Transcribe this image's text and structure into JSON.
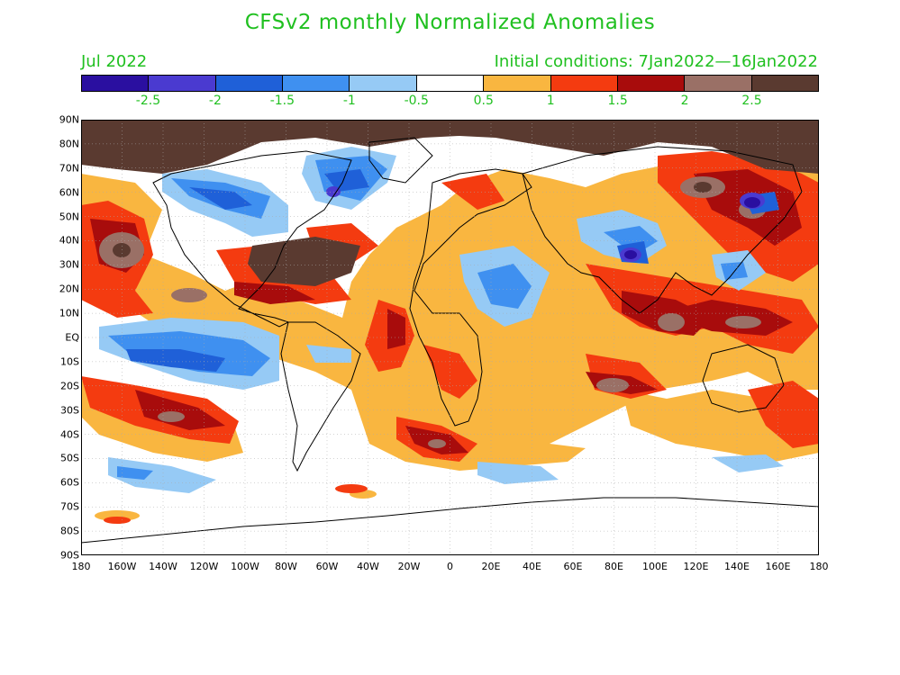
{
  "header": {
    "title": "CFSv2 monthly Normalized Anomalies",
    "month": "Jul 2022",
    "initial_conditions": "Initial conditions: 7Jan2022—16Jan2022"
  },
  "colorbar": {
    "colors": [
      "#2a0fa0",
      "#4a3ad0",
      "#1f60d8",
      "#3f90f0",
      "#96caf5",
      "#ffffff",
      "#f9b640",
      "#f43b10",
      "#a80c0c",
      "#9a7066",
      "#5a3a30"
    ],
    "labels": [
      "-2.5",
      "-2",
      "-1.5",
      "-1",
      "-0.5",
      "0.5",
      "1",
      "1.5",
      "2",
      "2.5"
    ]
  },
  "axes": {
    "lat_labels": [
      "90N",
      "80N",
      "70N",
      "60N",
      "50N",
      "40N",
      "30N",
      "20N",
      "10N",
      "EQ",
      "10S",
      "20S",
      "30S",
      "40S",
      "50S",
      "60S",
      "70S",
      "80S",
      "90S"
    ],
    "lon_labels": [
      "180",
      "160W",
      "140W",
      "120W",
      "100W",
      "80W",
      "60W",
      "40W",
      "20W",
      "0",
      "20E",
      "40E",
      "60E",
      "80E",
      "100E",
      "120E",
      "140E",
      "160E",
      "180"
    ]
  },
  "chart_data": {
    "type": "heatmap",
    "title": "CFSv2 monthly Normalized Anomalies",
    "x_range": [
      -180,
      180
    ],
    "y_range": [
      -90,
      90
    ],
    "levels": [
      -2.5,
      -2,
      -1.5,
      -1,
      -0.5,
      0.5,
      1,
      1.5,
      2,
      2.5
    ],
    "grid": true
  }
}
